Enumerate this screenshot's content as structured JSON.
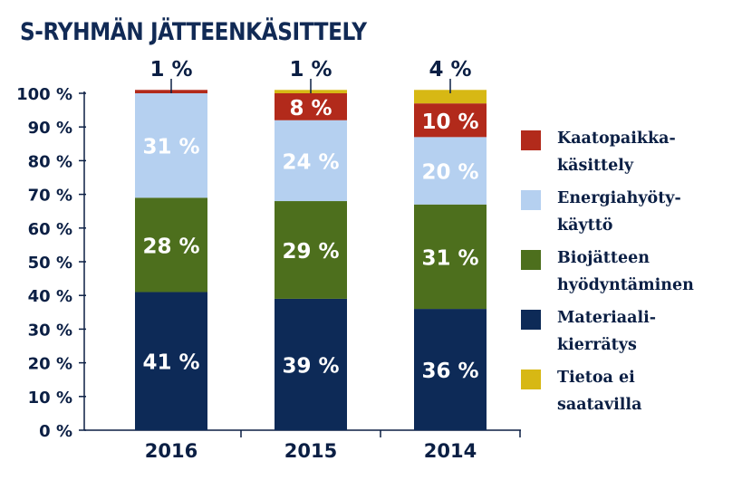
{
  "chart_data": {
    "type": "bar",
    "stacked": true,
    "title": "S-RYHMÄN JÄTTEENKÄSITTELY",
    "categories": [
      "2016",
      "2015",
      "2014"
    ],
    "series": [
      {
        "name": "Materiaali-\nkierrätys",
        "color": "#0d2a57",
        "values": [
          41,
          39,
          36
        ],
        "labels": [
          "41 %",
          "39 %",
          "36 %"
        ]
      },
      {
        "name": "Biojätteen\nhyödyntäminen",
        "color": "#4d6f1d",
        "values": [
          28,
          29,
          31
        ],
        "labels": [
          "28 %",
          "29 %",
          "31 %"
        ]
      },
      {
        "name": "Energiahyöty-\nkäyttö",
        "color": "#b5d0f0",
        "values": [
          31,
          24,
          20
        ],
        "labels": [
          "31 %",
          "24 %",
          "20 %"
        ]
      },
      {
        "name": "Kaatopaikka-\nkäsittely",
        "color": "#b22a1b",
        "values": [
          1,
          8,
          10
        ],
        "labels": [
          "1 %",
          "8 %",
          "10 %"
        ]
      },
      {
        "name": "Tietoa ei\nsaatavilla",
        "color": "#d7b814",
        "values": [
          0,
          1,
          4
        ],
        "labels": [
          "",
          "",
          "4 %"
        ]
      }
    ],
    "top_labels": [
      "1 %",
      "1 %",
      "4 %"
    ],
    "y_ticks": [
      "0 %",
      "10 %",
      "20 %",
      "30 %",
      "40 %",
      "50 %",
      "60 %",
      "70 %",
      "80 %",
      "90 %",
      "100 %"
    ],
    "ylim": [
      0,
      100
    ],
    "legend_order": [
      "Kaatopaikka-\nkäsittely",
      "Energiahyöty-\nkäyttö",
      "Biojätteen\nhyödyntäminen",
      "Materiaali-\nkierrätys",
      "Tietoa ei\nsaatavilla"
    ],
    "legend_position": "right"
  }
}
